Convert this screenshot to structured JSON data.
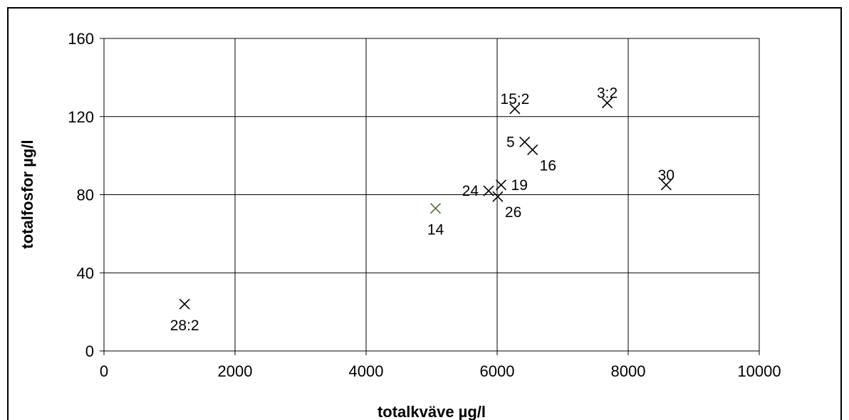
{
  "chart_data": {
    "type": "scatter",
    "xlabel": "totalkväve  µg/l",
    "ylabel": "totalfosfor  µg/l",
    "xlim": [
      0,
      10000
    ],
    "ylim": [
      0,
      160
    ],
    "xticks": [
      0,
      2000,
      4000,
      6000,
      8000,
      10000
    ],
    "yticks": [
      0,
      40,
      80,
      120,
      160
    ],
    "grid": true,
    "legend": "none",
    "points": [
      {
        "x": 1230,
        "y": 24,
        "label": "28:2",
        "color": "#000000",
        "label_pos": "below"
      },
      {
        "x": 5060,
        "y": 73,
        "label": "14",
        "color": "#556B2F",
        "label_pos": "below"
      },
      {
        "x": 5870,
        "y": 82,
        "label": "24",
        "color": "#000000",
        "label_pos": "left"
      },
      {
        "x": 6060,
        "y": 85,
        "label": "19",
        "color": "#000000",
        "label_pos": "right"
      },
      {
        "x": 6010,
        "y": 79,
        "label": "26",
        "color": "#000000",
        "label_pos": "below-right"
      },
      {
        "x": 6270,
        "y": 124,
        "label": "15:2",
        "color": "#000000",
        "label_pos": "above"
      },
      {
        "x": 6420,
        "y": 107,
        "label": "5",
        "color": "#000000",
        "label_pos": "left"
      },
      {
        "x": 6540,
        "y": 103,
        "label": "16",
        "color": "#000000",
        "label_pos": "below-right"
      },
      {
        "x": 7680,
        "y": 127,
        "label": "3:2",
        "color": "#000000",
        "label_pos": "above"
      },
      {
        "x": 8580,
        "y": 85,
        "label": "30",
        "color": "#000000",
        "label_pos": "above"
      }
    ]
  }
}
